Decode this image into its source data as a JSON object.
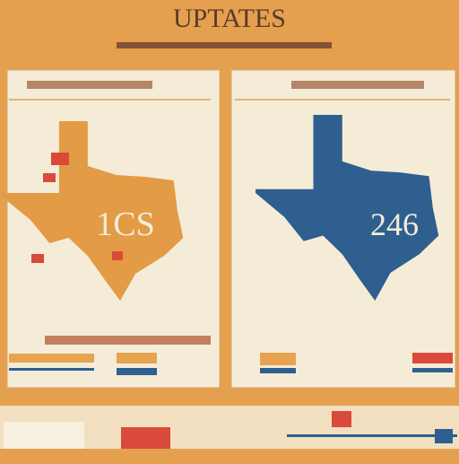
{
  "header": {
    "title": "UPTATES"
  },
  "panels": [
    {
      "map_label": "1CS"
    },
    {
      "map_label": "246"
    }
  ]
}
